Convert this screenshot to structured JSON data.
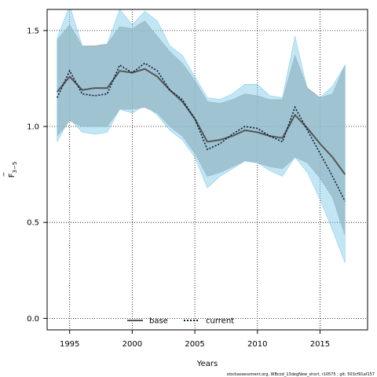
{
  "chart_data": {
    "type": "line",
    "xlabel": "Years",
    "ylabel": "F",
    "ylabel_bar": "‾",
    "ylabel_sub": "3−5",
    "footnote": "stockassessment.org, WBcod_13degNew_short, r10575 ; git: 503cf91af157",
    "xlim": [
      1993.2,
      2018.8
    ],
    "ylim": [
      -0.06,
      1.61
    ],
    "x_ticks": [
      1995,
      2000,
      2005,
      2010,
      2015
    ],
    "x_tick_labels": [
      "1995",
      "2000",
      "2005",
      "2010",
      "2015"
    ],
    "y_ticks": [
      0.0,
      0.5,
      1.0,
      1.5
    ],
    "y_tick_labels": [
      "0.0",
      "0.5",
      "1.0",
      "1.5"
    ],
    "grid": true,
    "legend_placement": "bottom-center",
    "x": [
      1994,
      1995,
      1996,
      1997,
      1998,
      1999,
      2000,
      2001,
      2002,
      2003,
      2004,
      2005,
      2006,
      2007,
      2008,
      2009,
      2010,
      2011,
      2012,
      2013,
      2014,
      2015,
      2016,
      2017
    ],
    "series": [
      {
        "name": "base",
        "line_color": "#555555",
        "band_color": "#a0a0a0",
        "style": "solid",
        "values": [
          1.18,
          1.26,
          1.19,
          1.2,
          1.2,
          1.29,
          1.28,
          1.3,
          1.26,
          1.19,
          1.13,
          1.04,
          0.92,
          0.93,
          0.95,
          0.98,
          0.97,
          0.95,
          0.94,
          1.06,
          0.99,
          0.91,
          0.84,
          0.75
        ],
        "lower": [
          0.95,
          1.03,
          1.0,
          1.0,
          1.0,
          1.09,
          1.09,
          1.1,
          1.07,
          1.0,
          0.95,
          0.86,
          0.74,
          0.76,
          0.79,
          0.82,
          0.81,
          0.79,
          0.78,
          0.84,
          0.81,
          0.73,
          0.63,
          0.43
        ],
        "upper": [
          1.45,
          1.53,
          1.42,
          1.42,
          1.43,
          1.52,
          1.51,
          1.55,
          1.47,
          1.39,
          1.33,
          1.24,
          1.13,
          1.12,
          1.14,
          1.17,
          1.16,
          1.14,
          1.14,
          1.37,
          1.2,
          1.15,
          1.17,
          1.32
        ]
      },
      {
        "name": "current",
        "line_color": "#0a1a3a",
        "band_color": "#87ceeb",
        "style": "dotted",
        "values": [
          1.15,
          1.29,
          1.17,
          1.16,
          1.17,
          1.32,
          1.28,
          1.33,
          1.29,
          1.19,
          1.14,
          1.04,
          0.88,
          0.91,
          0.96,
          1.0,
          0.99,
          0.95,
          0.92,
          1.1,
          0.98,
          0.86,
          0.74,
          0.61
        ],
        "lower": [
          0.92,
          1.04,
          0.97,
          0.96,
          0.97,
          1.09,
          1.07,
          1.11,
          1.06,
          0.98,
          0.93,
          0.84,
          0.68,
          0.74,
          0.78,
          0.82,
          0.81,
          0.77,
          0.74,
          0.84,
          0.76,
          0.62,
          0.46,
          0.29
        ],
        "upper": [
          1.46,
          1.63,
          1.42,
          1.41,
          1.43,
          1.61,
          1.53,
          1.6,
          1.55,
          1.42,
          1.37,
          1.26,
          1.15,
          1.14,
          1.17,
          1.22,
          1.22,
          1.16,
          1.15,
          1.47,
          1.19,
          1.15,
          1.21,
          1.32
        ]
      }
    ]
  }
}
